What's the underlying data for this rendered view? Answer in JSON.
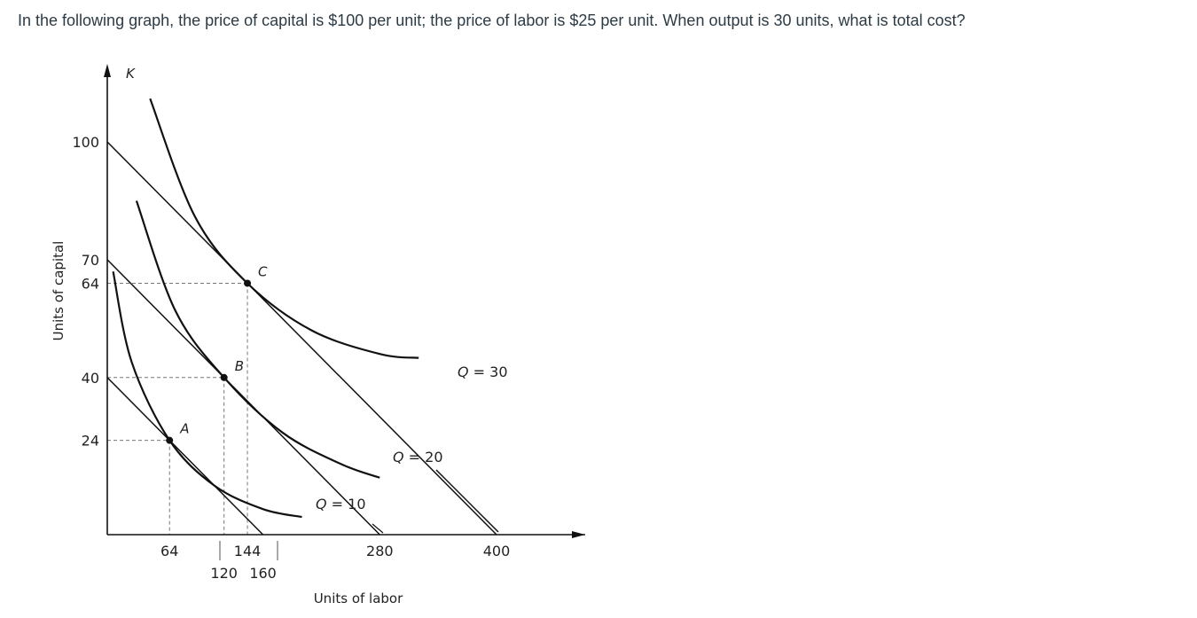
{
  "question": {
    "text": "In the following graph, the price of capital is $100 per unit; the price of labor is $25 per unit. When output is 30 units, what is total cost?"
  },
  "chart_data": {
    "type": "line",
    "xlabel": "Units of labor",
    "ylabel": "Units of capital",
    "y_axis_symbol": "K",
    "x_ticks": [
      64,
      120,
      144,
      160,
      280,
      400
    ],
    "y_ticks": [
      24,
      40,
      64,
      70,
      100
    ],
    "xlim": [
      0,
      420
    ],
    "ylim": [
      0,
      110
    ],
    "grid": false,
    "isocosts": [
      {
        "x_intercept": 160,
        "y_intercept": 40
      },
      {
        "x_intercept": 280,
        "y_intercept": 70
      },
      {
        "x_intercept": 400,
        "y_intercept": 100
      }
    ],
    "isoquants": [
      {
        "label": "Q = 10",
        "points": [
          [
            6,
            67
          ],
          [
            25,
            44
          ],
          [
            64,
            24
          ],
          [
            110,
            12.5
          ],
          [
            160,
            6.5
          ],
          [
            200,
            4.5
          ]
        ]
      },
      {
        "label": "Q = 20",
        "points": [
          [
            30,
            85
          ],
          [
            70,
            57
          ],
          [
            120,
            40
          ],
          [
            180,
            26
          ],
          [
            240,
            18
          ],
          [
            280,
            14.5
          ]
        ]
      },
      {
        "label": "Q = 30",
        "points": [
          [
            44,
            111
          ],
          [
            90,
            81
          ],
          [
            144,
            64
          ],
          [
            210,
            52
          ],
          [
            280,
            46
          ],
          [
            320,
            45
          ]
        ]
      }
    ],
    "points": [
      {
        "name": "A",
        "x": 64,
        "y": 24
      },
      {
        "name": "B",
        "x": 120,
        "y": 40
      },
      {
        "name": "C",
        "x": 144,
        "y": 64
      }
    ]
  }
}
